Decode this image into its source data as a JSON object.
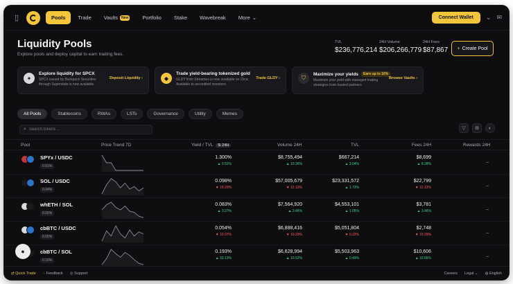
{
  "nav": {
    "links": [
      "Pools",
      "Trade",
      "Vaults",
      "Portfolio",
      "Stake",
      "Wavebreak",
      "More"
    ],
    "new_badge": "New",
    "connect": "Connect Wallet"
  },
  "header": {
    "title": "Liquidity Pools",
    "subtitle": "Explore pools and deploy capital to earn trading fees.",
    "stats": [
      {
        "label": "TVL",
        "value": "$236,776,214"
      },
      {
        "label": "24H Volume",
        "value": "$206,266,779"
      },
      {
        "label": "24H Fees",
        "value": "$87,867"
      }
    ],
    "create_button": "Create Pool"
  },
  "promos": [
    {
      "title": "Explore liquidity for SPCX",
      "desc": "SPCX issued by Backpack Securities through Superstate is now available.",
      "link": "Deposit Liquidity",
      "badge": "",
      "icon_color": "#d8d8dc"
    },
    {
      "title": "Trade yield-bearing tokenized gold",
      "desc": "GLDY from Streamex is now available on Orca. Available to accredited investors.",
      "link": "Trade GLDY",
      "badge": "",
      "icon_color": "#f3c53a"
    },
    {
      "title": "Maximize your yields",
      "desc": "Maximize your yield with managed trading strategies from trusted partners.",
      "link": "Browse Vaults",
      "badge": "Earn up to 10%",
      "icon_color": "#f3c53a"
    }
  ],
  "filters": [
    "All Pools",
    "Stablecoins",
    "RWAs",
    "LSTs",
    "Governance",
    "Utility",
    "Memes"
  ],
  "search": {
    "placeholder": "Search tokens ..."
  },
  "table": {
    "headers": {
      "pool": "Pool",
      "trend": "Price Trend 7D",
      "yield": "Yield / TVL",
      "yield_period": "24H",
      "volume": "Volume 24H",
      "tvl": "TVL",
      "fees": "Fees 24H",
      "rewards": "Rewards 24H"
    },
    "rows": [
      {
        "pair": "SPYx / USDC",
        "tag": "0.01%",
        "yield": "1.300%",
        "yield_chg": "0.52%",
        "yield_dir": "up",
        "volume": "$8,755,494",
        "volume_chg": "10.36%",
        "volume_dir": "up",
        "tvl": "$667,214",
        "tvl_chg": "3.04%",
        "tvl_dir": "up",
        "fees": "$8,699",
        "fees_chg": "8.28%",
        "fees_dir": "up",
        "rewards": "–",
        "coin_a": "#c8323a",
        "coin_b": "#2775ca",
        "trend": [
          50,
          49,
          49,
          48,
          48,
          48,
          48,
          48,
          48,
          48
        ]
      },
      {
        "pair": "SOL / USDC",
        "tag": "0.04%",
        "yield": "0.098%",
        "yield_chg": "19.20%",
        "yield_dir": "down",
        "volume": "$57,005,679",
        "volume_chg": "12.13%",
        "volume_dir": "down",
        "tvl": "$23,331,572",
        "tvl_chg": "1.73%",
        "tvl_dir": "up",
        "fees": "$22,799",
        "fees_chg": "12.13%",
        "fees_dir": "down",
        "rewards": "–",
        "coin_a": "#1a1a1a",
        "coin_b": "#2775ca",
        "trend": [
          30,
          45,
          55,
          50,
          40,
          48,
          38,
          42,
          35,
          40
        ]
      },
      {
        "pair": "whETH / SOL",
        "tag": "0.05%",
        "yield": "0.083%",
        "yield_chg": "3.27%",
        "yield_dir": "up",
        "volume": "$7,564,920",
        "volume_chg": "3.46%",
        "volume_dir": "up",
        "tvl": "$4,553,101",
        "tvl_chg": "1.05%",
        "tvl_dir": "up",
        "fees": "$3,781",
        "fees_chg": "3.46%",
        "fees_dir": "up",
        "rewards": "–",
        "coin_a": "#d9d9de",
        "coin_b": "#1a1a1a",
        "trend": [
          40,
          48,
          52,
          44,
          40,
          46,
          38,
          36,
          30,
          28
        ]
      },
      {
        "pair": "cbBTC / USDC",
        "tag": "0.05%",
        "yield": "0.054%",
        "yield_chg": "10.07%",
        "yield_dir": "down",
        "volume": "$6,888,416",
        "volume_chg": "10.29%",
        "volume_dir": "down",
        "tvl": "$5,051,804",
        "tvl_chg": "0.22%",
        "tvl_dir": "down",
        "fees": "$2,748",
        "fees_chg": "10.29%",
        "fees_dir": "down",
        "rewards": "–",
        "coin_a": "#d9d9de",
        "coin_b": "#2775ca",
        "trend": [
          35,
          45,
          40,
          50,
          42,
          38,
          46,
          40,
          44,
          42
        ]
      },
      {
        "pair": "cbBTC / SOL",
        "tag": "0.16%",
        "yield": "0.193%",
        "yield_chg": "33.13%",
        "yield_dir": "up",
        "volume": "$6,628,994",
        "volume_chg": "10.52%",
        "volume_dir": "up",
        "tvl": "$5,503,963",
        "tvl_chg": "0.49%",
        "tvl_dir": "up",
        "fees": "$10,606",
        "fees_chg": "10.56%",
        "fees_dir": "up",
        "rewards": "–",
        "coin_a": "#d9d9de",
        "coin_b": "#1a1a1a",
        "trend": [
          30,
          40,
          55,
          48,
          42,
          50,
          45,
          38,
          32,
          30
        ]
      }
    ]
  },
  "footer": {
    "quick_trade": "Quick Trade",
    "feedback": "Feedback",
    "support": "Support",
    "careers": "Careers",
    "legal": "Legal",
    "language": "English"
  },
  "colors": {
    "accent": "#f3c53a",
    "up": "#3ecf8e",
    "down": "#ff5a5f",
    "background": "#0e0e11"
  }
}
